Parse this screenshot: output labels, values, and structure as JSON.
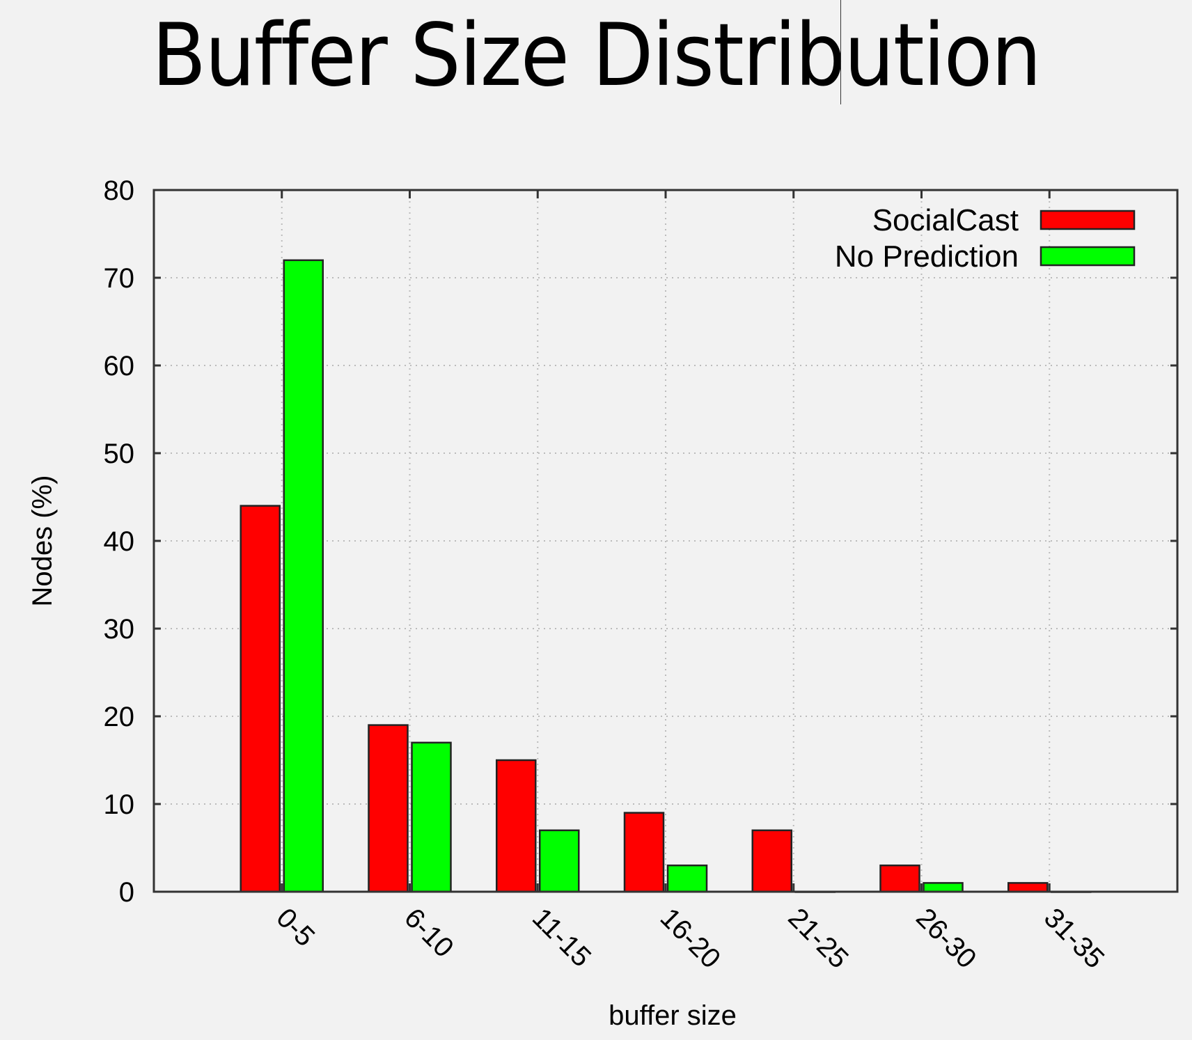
{
  "slide": {
    "title": "Buffer Size Distribution"
  },
  "chart_data": {
    "type": "bar",
    "title": "",
    "xlabel": "buffer size",
    "ylabel": "Nodes (%)",
    "ylim": [
      0,
      80
    ],
    "yticks": [
      0,
      10,
      20,
      30,
      40,
      50,
      60,
      70,
      80
    ],
    "grid": true,
    "legend_position": "top-right",
    "categories": [
      "0-5",
      "6-10",
      "11-15",
      "16-20",
      "21-25",
      "26-30",
      "31-35"
    ],
    "series": [
      {
        "name": "SocialCast",
        "color": "#ff0000",
        "values": [
          44,
          19,
          15,
          9,
          7,
          3,
          1
        ]
      },
      {
        "name": "No Prediction",
        "color": "#00ff00",
        "values": [
          72,
          17,
          7,
          3,
          0,
          1,
          0
        ]
      }
    ]
  }
}
